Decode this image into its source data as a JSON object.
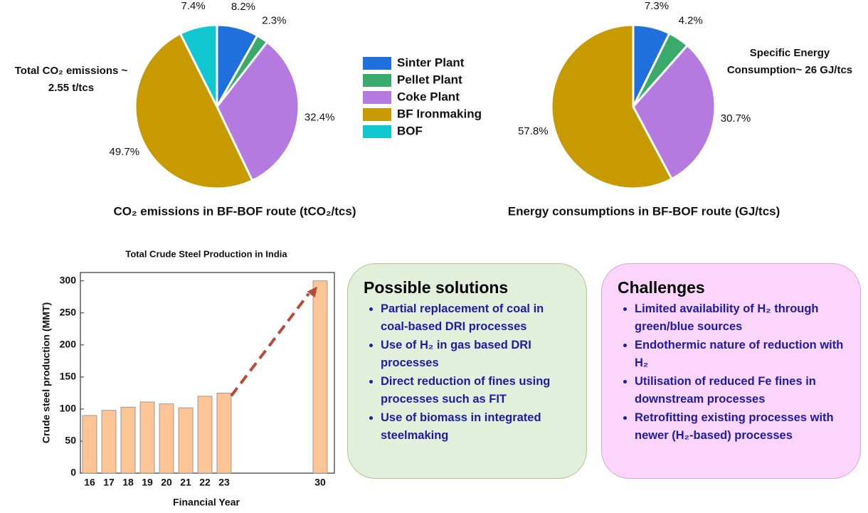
{
  "chart_data": [
    {
      "type": "pie",
      "title": "CO₂ emissions in BF-BOF route (tCO₂/tcs)",
      "categories": [
        "Sinter Plant",
        "Pellet Plant",
        "Coke Plant",
        "BF Ironmaking",
        "BOF"
      ],
      "values": [
        8.2,
        2.3,
        32.4,
        49.7,
        7.4
      ],
      "value_labels": [
        "8.2%",
        "2.3%",
        "32.4%",
        "49.7%",
        "7.4%"
      ],
      "colors": [
        "#1f6fdc",
        "#3aaa6a",
        "#b57ae0",
        "#c79a00",
        "#12c8d0"
      ],
      "annotation": [
        "Total CO₂ emissions ~",
        "2.55 t/tcs"
      ]
    },
    {
      "type": "pie",
      "title": "Energy consumptions in BF-BOF route (GJ/tcs)",
      "values": [
        7.3,
        4.2,
        30.7,
        57.8
      ],
      "value_labels": [
        "7.3%",
        "4.2%",
        "30.7%",
        "57.8%"
      ],
      "colors": [
        "#1f6fdc",
        "#3aaa6a",
        "#b57ae0",
        "#c79a00"
      ],
      "annotation": [
        "Specific Energy",
        "Consumption~ 26 GJ/tcs"
      ]
    },
    {
      "type": "bar",
      "title": "Total Crude Steel Production in India",
      "x_label": "Financial Year",
      "y_label": "Crude steel production (MMT)",
      "categories": [
        "16",
        "17",
        "18",
        "19",
        "20",
        "21",
        "22",
        "23",
        null,
        null,
        null,
        null,
        "30"
      ],
      "values": [
        90,
        98,
        103,
        111,
        108,
        102,
        120,
        125,
        null,
        null,
        null,
        null,
        300
      ],
      "color": "#fdc595",
      "ylim": [
        0,
        313
      ],
      "yticks": [
        0,
        50,
        100,
        150,
        200,
        250,
        300
      ]
    }
  ],
  "panels": [
    {
      "title": "Possible solutions",
      "items": [
        "Partial replacement of coal in coal-based DRI processes",
        "Use of H₂ in gas based DRI processes",
        "Direct reduction of fines using processes such as FIT",
        "Use of biomass in integrated steelmaking"
      ]
    },
    {
      "title": "Challenges",
      "items": [
        "Limited availability of H₂ through green/blue sources",
        "Endothermic nature of reduction with H₂",
        "Utilisation of reduced Fe fines in downstream processes",
        "Retrofitting existing processes with newer (H₂-based) processes"
      ]
    }
  ]
}
